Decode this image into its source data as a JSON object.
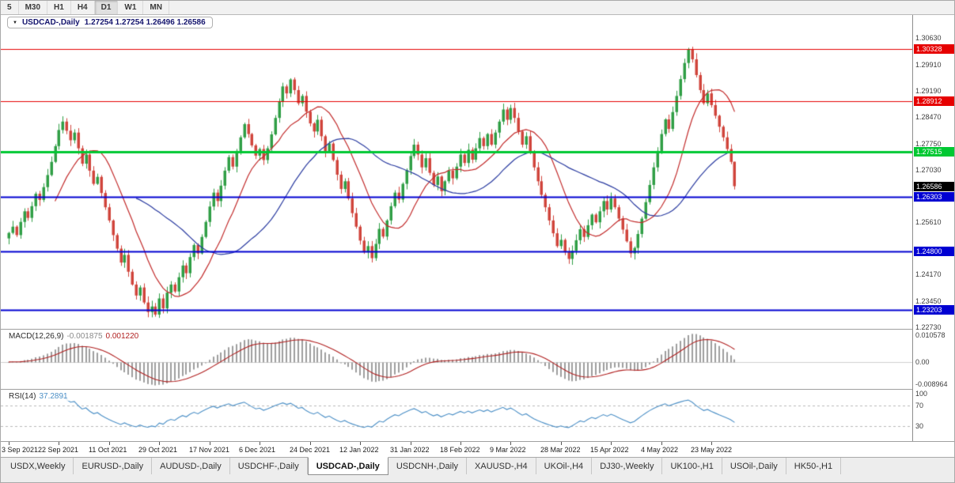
{
  "toolbar": {
    "timeframes": [
      {
        "label": "5",
        "active": false
      },
      {
        "label": "M30",
        "active": false
      },
      {
        "label": "H1",
        "active": false
      },
      {
        "label": "H4",
        "active": false
      },
      {
        "label": "D1",
        "active": true
      },
      {
        "label": "W1",
        "active": false
      },
      {
        "label": "MN",
        "active": false
      }
    ]
  },
  "chart": {
    "title": {
      "dropdown_icon": "▼",
      "symbol": "USDCAD-,Daily",
      "ohlc": "1.27254 1.27254 1.26496 1.26586"
    },
    "axis": {
      "price_labels": [
        {
          "text": "1.30630",
          "value": 1.3063
        },
        {
          "text": "1.29910",
          "value": 1.2991
        },
        {
          "text": "1.29190",
          "value": 1.2919
        },
        {
          "text": "1.28470",
          "value": 1.2847
        },
        {
          "text": "1.27750",
          "value": 1.2775
        },
        {
          "text": "1.27030",
          "value": 1.2703
        },
        {
          "text": "1.25610",
          "value": 1.2561
        },
        {
          "text": "1.24170",
          "value": 1.2417
        },
        {
          "text": "1.23450",
          "value": 1.2345
        },
        {
          "text": "1.22730",
          "value": 1.2273
        }
      ],
      "macd_labels": {
        "top": "0.010578",
        "zero": "0.00",
        "bottom": "-0.008964"
      },
      "rsi_labels": [
        {
          "text": "100",
          "value": 100
        },
        {
          "text": "70",
          "value": 70
        },
        {
          "text": "30",
          "value": 30
        }
      ]
    },
    "levels": [
      {
        "value": 1.30328,
        "label": "1.30328",
        "color": "red"
      },
      {
        "value": 1.28912,
        "label": "1.28912",
        "color": "red"
      },
      {
        "value": 1.27515,
        "label": "1.27515",
        "color": "green"
      },
      {
        "value": 1.26303,
        "label": "1.26303",
        "color": "blue"
      },
      {
        "value": 1.248,
        "label": "1.24800",
        "color": "blue"
      },
      {
        "value": 1.23203,
        "label": "1.23203",
        "color": "blue"
      }
    ],
    "current_price": {
      "value": 1.26586,
      "label": "1.26586"
    }
  },
  "macd": {
    "label": "MACD(12,26,9)",
    "main_value": "-0.001875",
    "signal_value": "0.001220"
  },
  "rsi": {
    "label": "RSI(14)",
    "value": "37.2891"
  },
  "dates": [
    {
      "label": "3 Sep 2021",
      "i": 0
    },
    {
      "label": "22 Sep 2021",
      "i": 13
    },
    {
      "label": "11 Oct 2021",
      "i": 26
    },
    {
      "label": "29 Oct 2021",
      "i": 39
    },
    {
      "label": "17 Nov 2021",
      "i": 52
    },
    {
      "label": "6 Dec 2021",
      "i": 65
    },
    {
      "label": "24 Dec 2021",
      "i": 78
    },
    {
      "label": "12 Jan 2022",
      "i": 91
    },
    {
      "label": "31 Jan 2022",
      "i": 104
    },
    {
      "label": "18 Feb 2022",
      "i": 117
    },
    {
      "label": "9 Mar 2022",
      "i": 130
    },
    {
      "label": "28 Mar 2022",
      "i": 143
    },
    {
      "label": "15 Apr 2022",
      "i": 156
    },
    {
      "label": "4 May 2022",
      "i": 169
    },
    {
      "label": "23 May 2022",
      "i": 182
    }
  ],
  "tabs": [
    {
      "label": "USDX,Weekly",
      "active": false
    },
    {
      "label": "EURUSD-,Daily",
      "active": false
    },
    {
      "label": "AUDUSD-,Daily",
      "active": false
    },
    {
      "label": "USDCHF-,Daily",
      "active": false
    },
    {
      "label": "USDCAD-,Daily",
      "active": true
    },
    {
      "label": "USDCNH-,Daily",
      "active": false
    },
    {
      "label": "XAUUSD-,H4",
      "active": false
    },
    {
      "label": "UKOil-,H4",
      "active": false
    },
    {
      "label": "DJ30-,Weekly",
      "active": false
    },
    {
      "label": "UK100-,H1",
      "active": false
    },
    {
      "label": "USOil-,Daily",
      "active": false
    },
    {
      "label": "HK50-,H1",
      "active": false
    }
  ],
  "chart_data": {
    "type": "candlestick",
    "symbol": "USDCAD-,Daily",
    "title": "USDCAD-,Daily",
    "indicators": [
      {
        "name": "MACD",
        "params": [
          12,
          26,
          9
        ],
        "values": [
          -0.001875,
          0.00122
        ]
      },
      {
        "name": "RSI",
        "params": [
          14
        ],
        "value": 37.2891
      }
    ],
    "price_axis": {
      "min": 1.2269,
      "max": 1.3126
    },
    "rsi_axis": [
      0,
      100
    ],
    "horizontal_levels": {
      "red": [
        1.30328,
        1.28912
      ],
      "green": [
        1.27515
      ],
      "blue": [
        1.26303,
        1.248,
        1.23203
      ]
    },
    "last_candle": {
      "open": 1.27254,
      "high": 1.27254,
      "low": 1.26496,
      "close": 1.26586
    },
    "closes": [
      1.2531,
      1.2548,
      1.2525,
      1.2561,
      1.259,
      1.2572,
      1.2604,
      1.2638,
      1.2621,
      1.2656,
      1.2689,
      1.2725,
      1.2768,
      1.2812,
      1.2835,
      1.281,
      1.2784,
      1.2805,
      1.2762,
      1.272,
      1.2745,
      1.2701,
      1.2665,
      1.2684,
      1.264,
      1.2601,
      1.2565,
      1.2525,
      1.2488,
      1.245,
      1.2471,
      1.2425,
      1.239,
      1.236,
      1.2382,
      1.2341,
      1.2315,
      1.233,
      1.2308,
      1.2352,
      1.2325,
      1.2368,
      1.239,
      1.2371,
      1.241,
      1.2442,
      1.2421,
      1.2465,
      1.2498,
      1.2475,
      1.252,
      1.2561,
      1.2603,
      1.2641,
      1.2618,
      1.266,
      1.2701,
      1.2738,
      1.2712,
      1.2755,
      1.2792,
      1.2828,
      1.2801,
      1.277,
      1.2742,
      1.276,
      1.273,
      1.2762,
      1.28,
      1.2845,
      1.289,
      1.2931,
      1.2912,
      1.295,
      1.2921,
      1.2885,
      1.2905,
      1.2862,
      1.283,
      1.2808,
      1.284,
      1.2795,
      1.2752,
      1.2775,
      1.273,
      1.269,
      1.2651,
      1.2672,
      1.2625,
      1.2585,
      1.2548,
      1.251,
      1.2478,
      1.2495,
      1.2462,
      1.2501,
      1.2542,
      1.2521,
      1.2565,
      1.2604,
      1.2641,
      1.2622,
      1.2665,
      1.2702,
      1.2741,
      1.2772,
      1.2745,
      1.271,
      1.2735,
      1.2695,
      1.2662,
      1.2685,
      1.2645,
      1.2672,
      1.2701,
      1.268,
      1.2712,
      1.2745,
      1.2722,
      1.2758,
      1.2731,
      1.2762,
      1.279,
      1.2768,
      1.2801,
      1.2772,
      1.2805,
      1.2835,
      1.2868,
      1.284,
      1.2872,
      1.2845,
      1.2808,
      1.2772,
      1.2795,
      1.2752,
      1.271,
      1.2672,
      1.2635,
      1.2601,
      1.2565,
      1.253,
      1.2495,
      1.2512,
      1.2478,
      1.246,
      1.2482,
      1.2511,
      1.2541,
      1.252,
      1.2552,
      1.2581,
      1.256,
      1.259,
      1.2618,
      1.2595,
      1.2625,
      1.2601,
      1.257,
      1.254,
      1.2508,
      1.2475,
      1.249,
      1.2528,
      1.257,
      1.2615,
      1.2662,
      1.271,
      1.2755,
      1.2801,
      1.2841,
      1.2815,
      1.2861,
      1.2905,
      1.2951,
      1.2995,
      1.3031,
      1.3005,
      1.2962,
      1.2921,
      1.2885,
      1.2912,
      1.288,
      1.2851,
      1.2821,
      1.2792,
      1.276,
      1.2725,
      1.26586
    ],
    "colors": {
      "up": "#2f9e45",
      "down": "#d0453c",
      "level_red": "#e60000",
      "level_green": "#00c832",
      "level_blue": "#0000d2",
      "current_label_bg": "#000000",
      "ma_fast": "#c22b2b",
      "ma_slow": "#2a3ba0",
      "macd_hist": "#9e9e9e",
      "macd_signal": "#b01f1f",
      "rsi": "#4b8fc6"
    }
  }
}
